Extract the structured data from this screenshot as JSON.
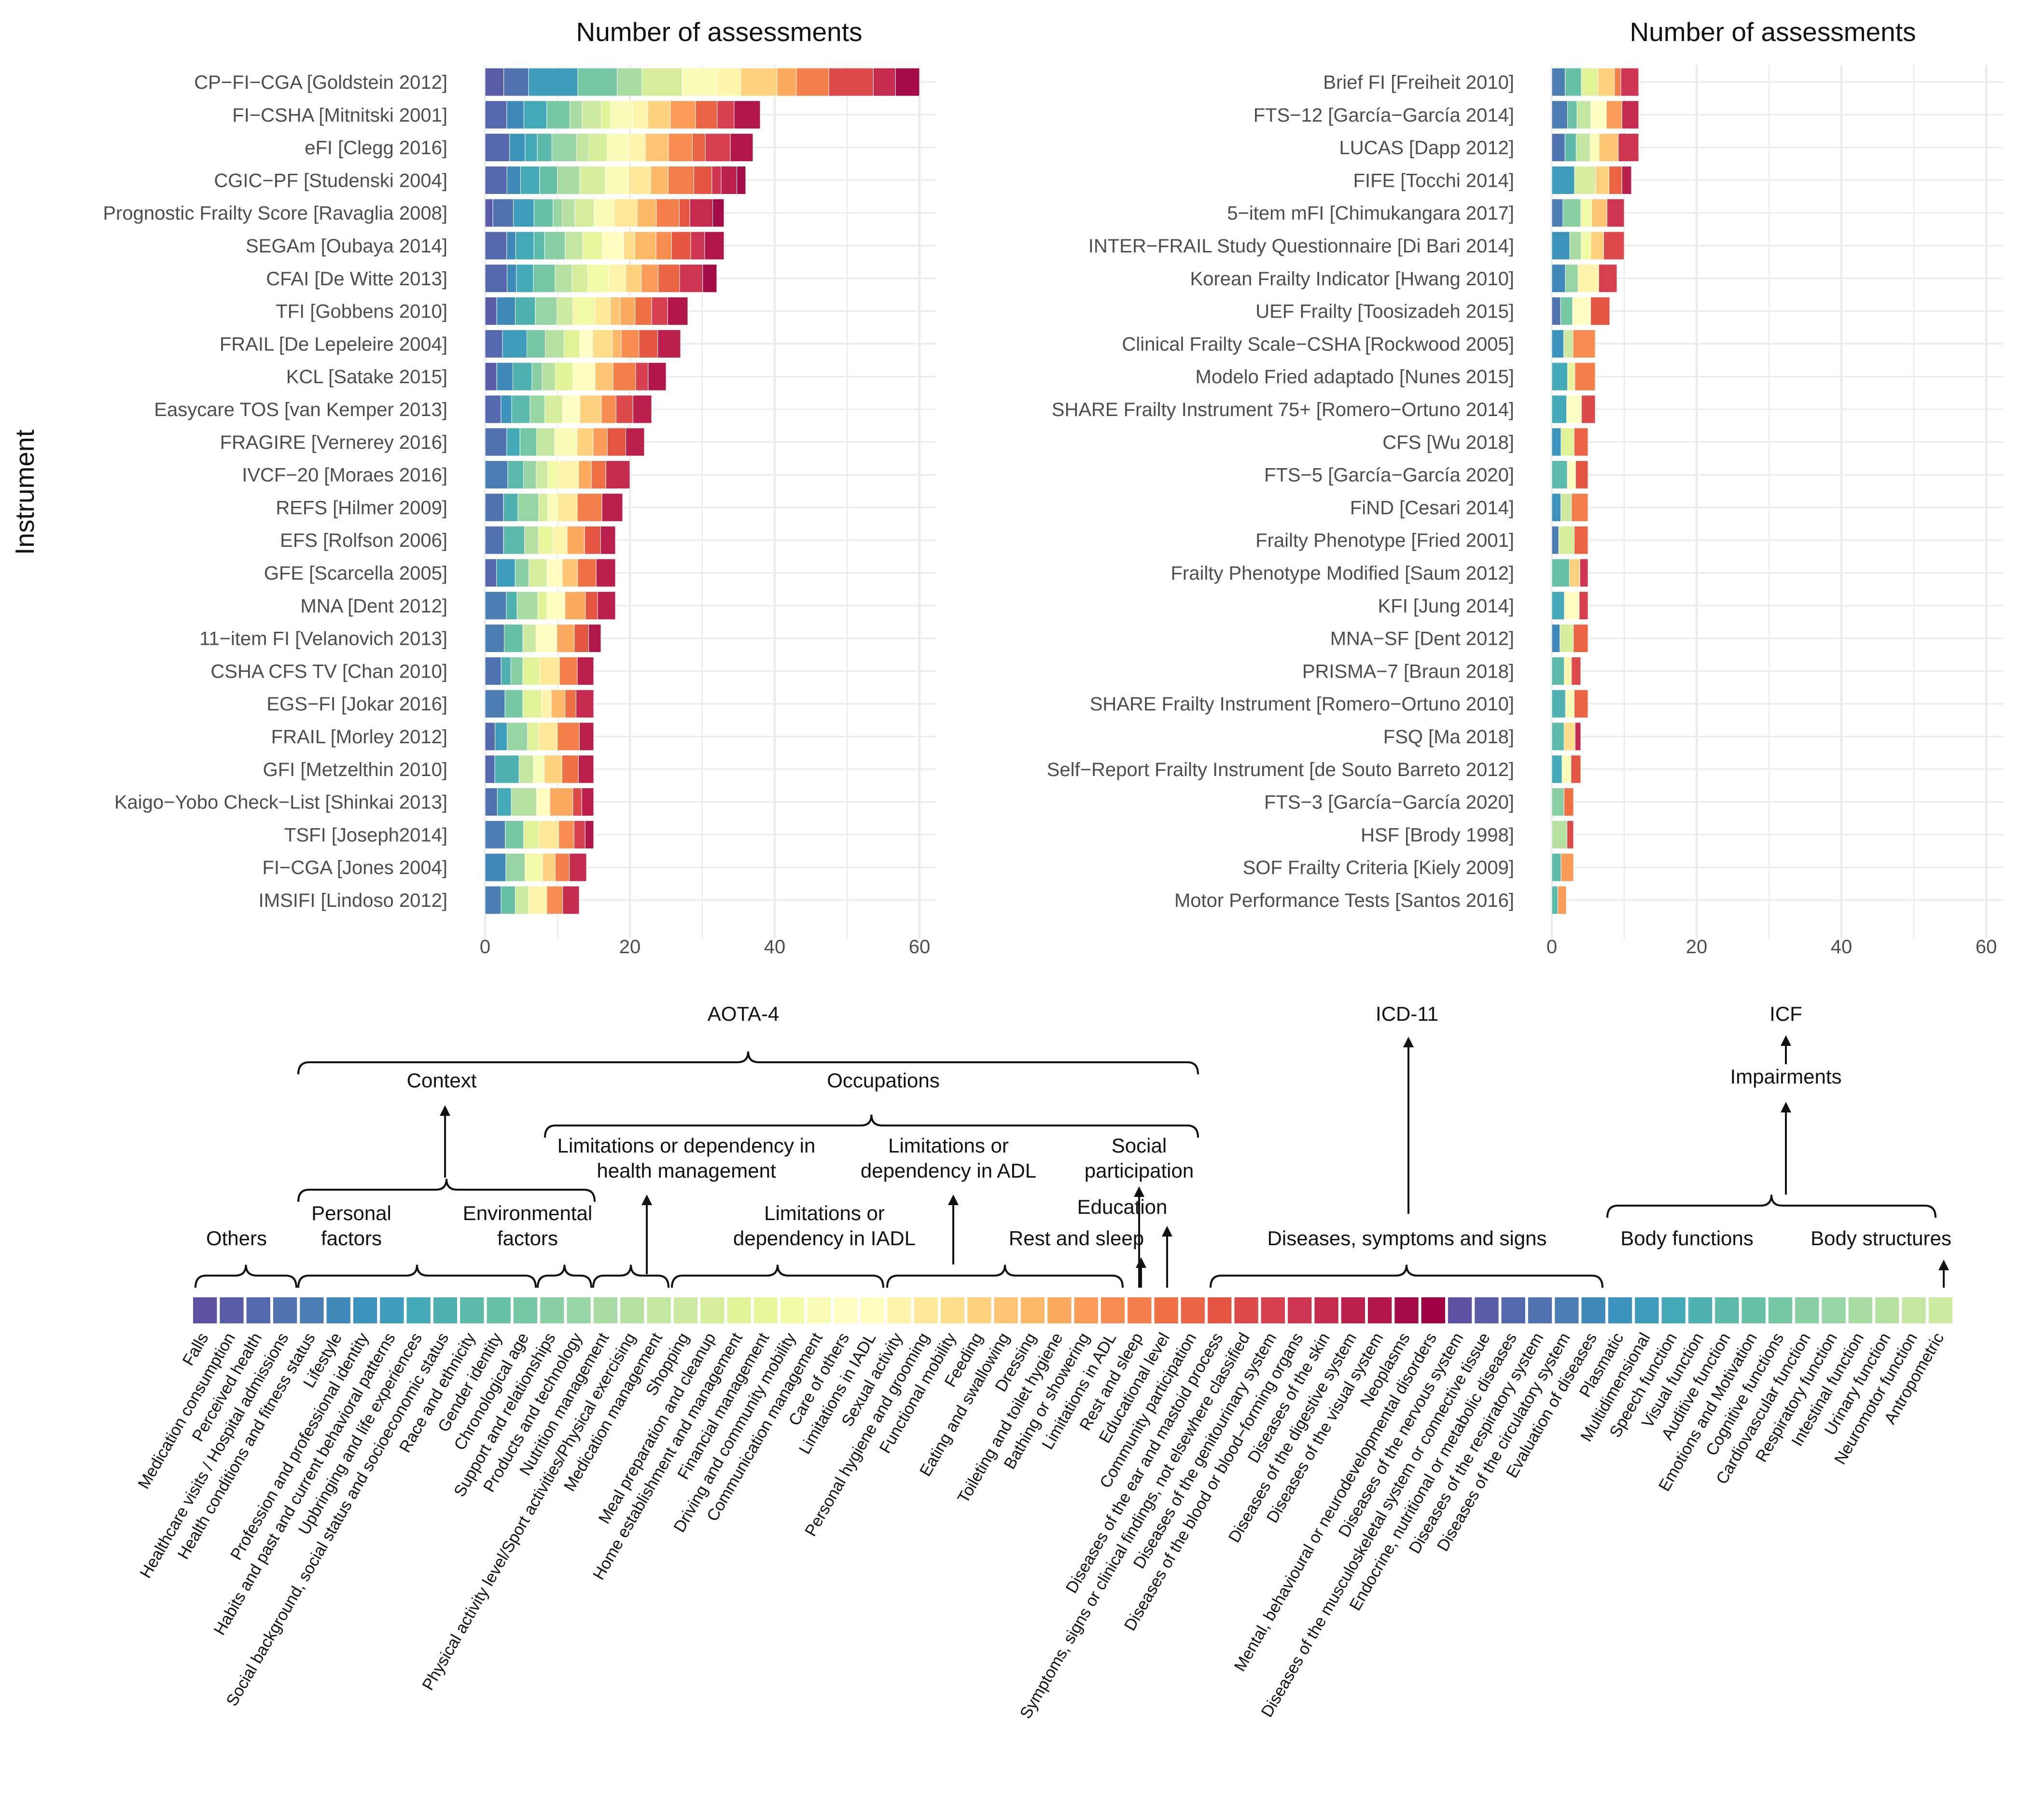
{
  "figure": {
    "y_axis_title": "Instrument",
    "palette": [
      "#5e4fa2",
      "#5a5ca8",
      "#5567ad",
      "#5172b1",
      "#4c7eb4",
      "#3f88ba",
      "#3b93bb",
      "#3d9dba",
      "#44a9b6",
      "#4fb2b0",
      "#5cbaaa",
      "#68c1a6",
      "#76c7a4",
      "#88cfa4",
      "#98d5a4",
      "#a8dca3",
      "#b6e1a2",
      "#c3e6a1",
      "#cdeaa0",
      "#d6ee9b",
      "#e1f399",
      "#eaf69e",
      "#f2faa8",
      "#f8fcb8",
      "#fdfec4",
      "#fffdc0",
      "#fff4ac",
      "#fee99b",
      "#fede8a",
      "#fed27f",
      "#fdc574",
      "#fdb868",
      "#fcaa5f",
      "#fa9b58",
      "#f88d52",
      "#f57f4b",
      "#ef7045",
      "#ea6343",
      "#e45641",
      "#dd4a4c",
      "#d6404e",
      "#ce3551",
      "#c52a4f",
      "#bb1f4c",
      "#b0164a",
      "#a40c47",
      "#9e0142"
    ],
    "left_panel": {
      "title": "Number of assessments",
      "x_ticks": [
        "0",
        "20",
        "40",
        "60"
      ],
      "xlim": [
        0,
        62
      ]
    },
    "right_panel": {
      "title": "Number of assessments",
      "x_ticks": [
        "0",
        "20",
        "40",
        "60"
      ],
      "xlim": [
        0,
        62
      ]
    }
  },
  "chart_data": [
    {
      "type": "bar",
      "orientation": "horizontal",
      "stacked": true,
      "title": "Number of assessments",
      "ylabel": "Instrument",
      "xlim": [
        0,
        62
      ],
      "categories": [
        "CP−FI−CGA [Goldstein 2012]",
        "FI−CSHA [Mitnitski 2001]",
        "eFI [Clegg 2016]",
        "CGIC−PF [Studenski 2004]",
        "Prognostic Frailty Score [Ravaglia 2008]",
        "SEGAm [Oubaya 2014]",
        "CFAI [De Witte 2013]",
        "TFI [Gobbens 2010]",
        "FRAIL [De Lepeleire 2004]",
        "KCL [Satake 2015]",
        "Easycare TOS [van Kemper 2013]",
        "FRAGIRE [Vernerey 2016]",
        "IVCF−20 [Moraes 2016]",
        "REFS [Hilmer 2009]",
        "EFS [Rolfson 2006]",
        "GFE [Scarcella 2005]",
        "MNA [Dent 2012]",
        "11−item FI [Velanovich 2013]",
        "CSHA CFS TV [Chan 2010]",
        "EGS−FI [Jokar 2016]",
        "FRAIL [Morley 2012]",
        "GFI [Metzelthin 2010]",
        "Kaigo−Yobo Check−List [Shinkai 2013]",
        "TSFI [Joseph2014]",
        "FI−CGA [Jones 2004]",
        "IMSIFI [Lindoso 2012]"
      ],
      "values": [
        60,
        38,
        37,
        36,
        33,
        33,
        32,
        28,
        27,
        25,
        23,
        22,
        20,
        19,
        18,
        18,
        18,
        16,
        15,
        15,
        15,
        15,
        15,
        15,
        14,
        13
      ]
    },
    {
      "type": "bar",
      "orientation": "horizontal",
      "stacked": true,
      "title": "Number of assessments",
      "xlim": [
        0,
        62
      ],
      "categories": [
        "Brief FI [Freiheit 2010]",
        "FTS−12 [García−García 2014]",
        "LUCAS [Dapp 2012]",
        "FIFE [Tocchi 2014]",
        "5−item mFI [Chimukangara 2017]",
        "INTER−FRAIL Study Questionnaire [Di Bari 2014]",
        "Korean Frailty Indicator [Hwang 2010]",
        "UEF Frailty [Toosizadeh 2015]",
        "Clinical Frailty Scale−CSHA [Rockwood 2005]",
        "Modelo Fried adaptado [Nunes 2015]",
        "SHARE Frailty Instrument 75+ [Romero−Ortuno 2014]",
        "CFS [Wu 2018]",
        "FTS−5 [García−García 2020]",
        "FiND [Cesari 2014]",
        "Frailty Phenotype [Fried 2001]",
        "Frailty Phenotype Modified [Saum 2012]",
        "KFI [Jung 2014]",
        "MNA−SF [Dent 2012]",
        "PRISMA−7 [Braun 2018]",
        "SHARE Frailty Instrument [Romero−Ortuno 2010]",
        "FSQ [Ma 2018]",
        "Self−Report Frailty Instrument [de Souto Barreto 2012]",
        "FTS−3 [García−García 2020]",
        "HSF [Brody 1998]",
        "SOF Frailty Criteria [Kiely 2009]",
        "Motor Performance Tests [Santos 2016]"
      ],
      "values": [
        12,
        12,
        12,
        11,
        10,
        10,
        9,
        8,
        6,
        6,
        6,
        5,
        5,
        5,
        5,
        5,
        5,
        5,
        4,
        5,
        4,
        4,
        3,
        3,
        3,
        2
      ]
    }
  ],
  "legend": {
    "groups": {
      "aota": "AOTA-4",
      "icd": "ICD-11",
      "icf": "ICF",
      "context": "Context",
      "occupations": "Occupations",
      "impairments": "Impairments",
      "others": "Others",
      "personal": [
        "Personal",
        "factors"
      ],
      "environmental": [
        "Environmental",
        "factors"
      ],
      "health_mgmt": [
        "Limitations or dependency in",
        "health management"
      ],
      "adl": [
        "Limitations or",
        "dependency in ADL"
      ],
      "social": [
        "Social",
        "participation"
      ],
      "iadl": [
        "Limitations or",
        "dependency in IADL"
      ],
      "education": "Education",
      "rest": "Rest and sleep",
      "diseases": "Diseases, symptoms and signs",
      "body_functions": "Body functions",
      "body_structures": "Body structures"
    },
    "labels": [
      "Falls",
      "Medication consumption",
      "Perceived health",
      "Healthcare visits / Hospital admissions",
      "Health conditions and fitness status",
      "Lifestyle",
      "Profession and professional identity",
      "Habits and past and current behavioral patterns",
      "Upbringing and life experiences",
      "Social background, social status and socioeconomic status",
      "Race and ethnicity",
      "Gender identity",
      "Chronological age",
      "Support and relationships",
      "Products and technology",
      "Nutrition management",
      "Physical activity level/Sport activities/Physical exercising",
      "Medication management",
      "Shopping",
      "Meal preparation and cleanup",
      "Home establishment and management",
      "Financial management",
      "Driving and community mobility",
      "Communication management",
      "Care of others",
      "Limitations in IADL",
      "Sexual activity",
      "Personal hygiene and grooming",
      "Functional mobility",
      "Feeding",
      "Eating and swallowing",
      "Dressing",
      "Toileting and toilet hygiene",
      "Bathing or showering",
      "Limitations in ADL",
      "Rest and sleep",
      "Educational level",
      "Community participation",
      "Diseases of the ear and mastoid process",
      "Symptoms, signs or clinical findings, not elsewhere classified",
      "Diseases of the genitourinary system",
      "Diseases of the blood or blood−forming organs",
      "Diseases of the skin",
      "Diseases of the digestive system",
      "Diseases of the visual system",
      "Neoplasms",
      "Mental, behavioural or neurodevelopmental disorders",
      "Diseases of the nervous system",
      "Diseases of the musculoskeletal system or connective tissue",
      "Endocrine, nutritional or metabolic diseases",
      "Diseases of the respiratory system",
      "Diseases of the circulatory system",
      "Evaluation of diseases",
      "Plasmatic",
      "Multidimensional",
      "Speech function",
      "Visual function",
      "Auditive function",
      "Emotions and Motivation",
      "Cognitive functions",
      "Cardiovascular function",
      "Respiratory function",
      "Intestinal function",
      "Urinary function",
      "Neuromotor function",
      "Antropometric"
    ]
  }
}
